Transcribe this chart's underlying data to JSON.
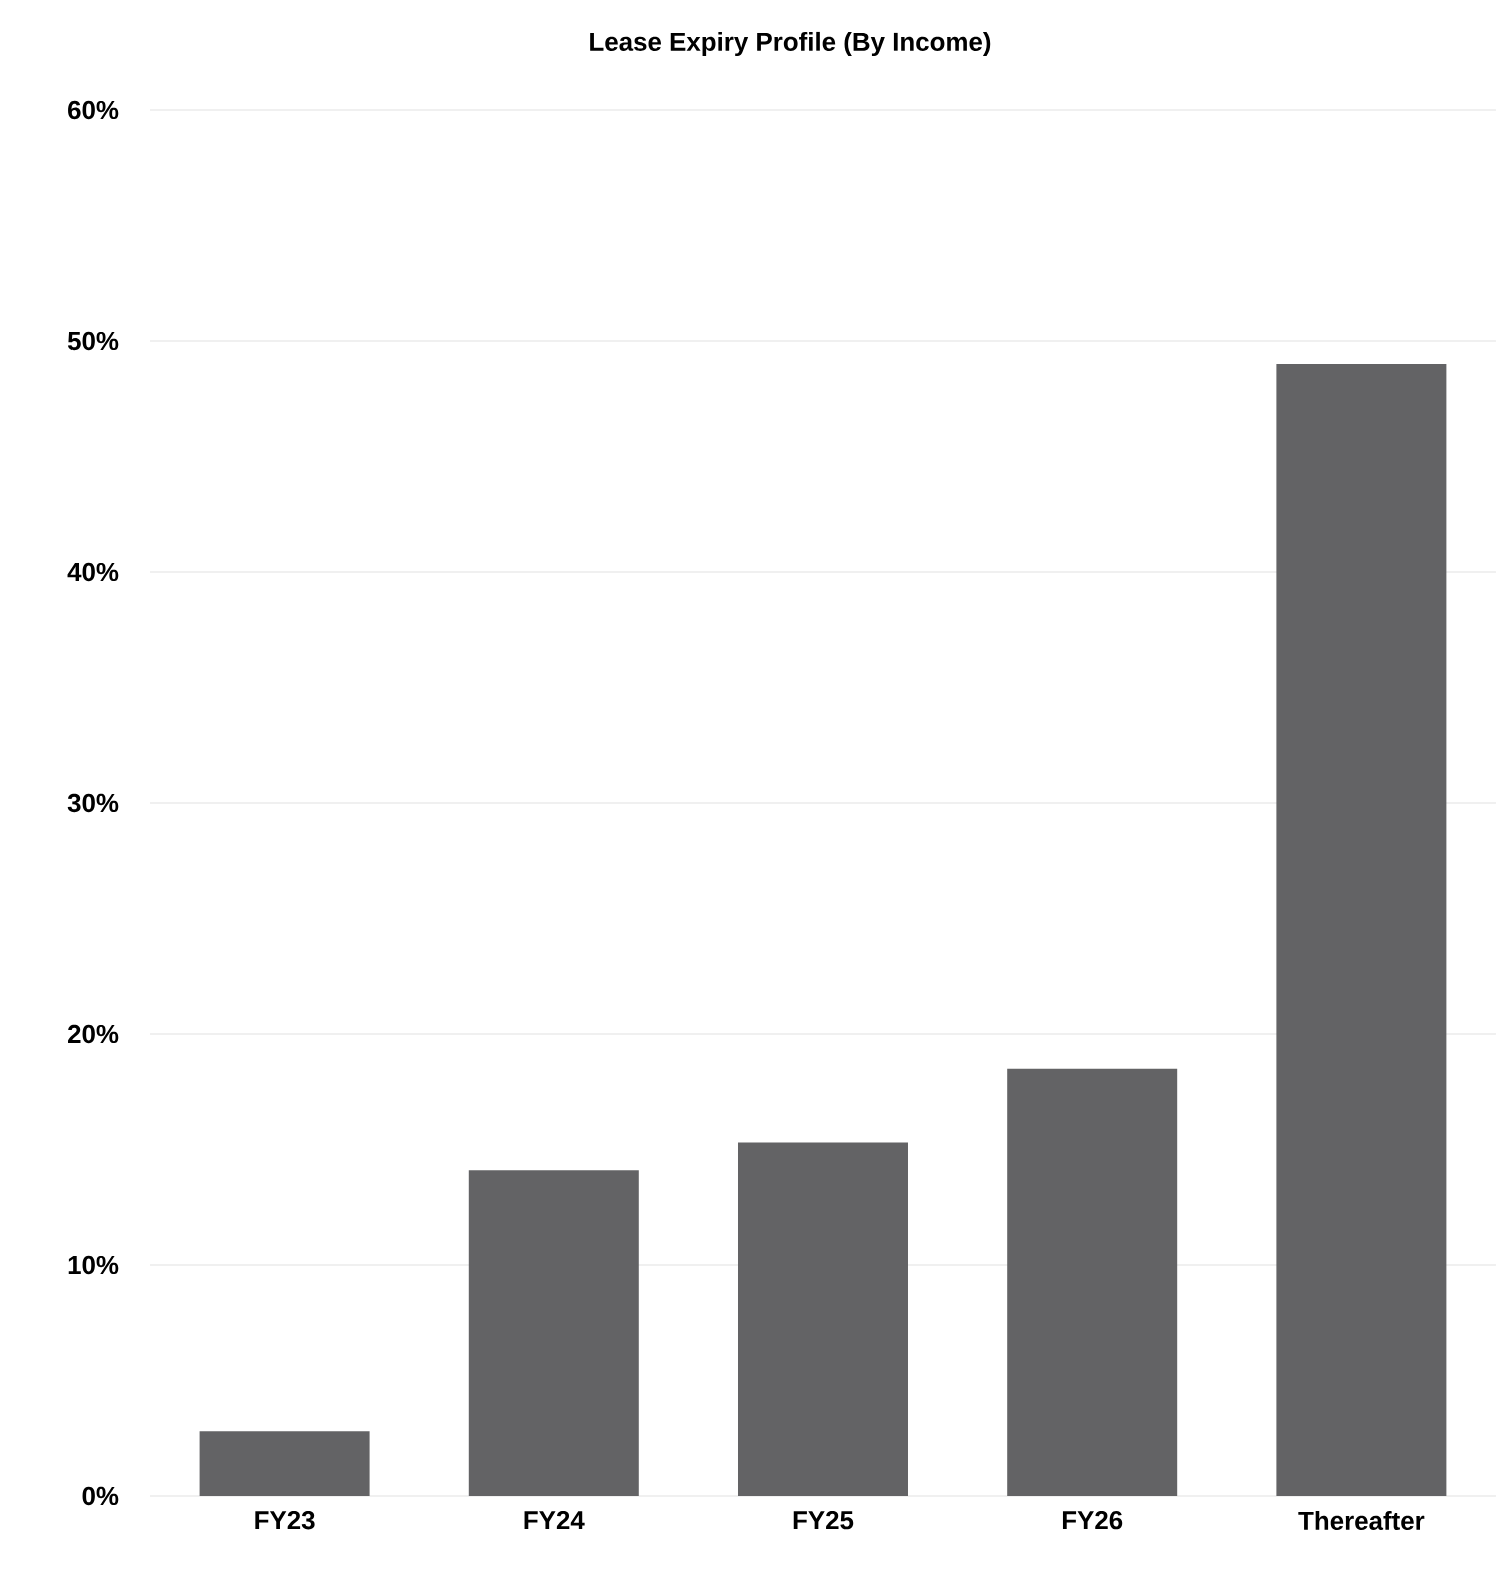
{
  "chart_data": {
    "type": "bar",
    "title": "Lease Expiry Profile (By Income)",
    "categories": [
      "FY23",
      "FY24",
      "FY25",
      "FY26",
      "Thereafter"
    ],
    "values": [
      2.8,
      14.1,
      15.3,
      18.5,
      49.0
    ],
    "color": "#636365",
    "ylim": [
      0,
      60
    ],
    "yticks": [
      {
        "value": 0,
        "label": "0%"
      },
      {
        "value": 10,
        "label": "10%"
      },
      {
        "value": 20,
        "label": "20%"
      },
      {
        "value": 30,
        "label": "30%"
      },
      {
        "value": 40,
        "label": "40%"
      },
      {
        "value": 50,
        "label": "50%"
      },
      {
        "value": 60,
        "label": "60%"
      }
    ],
    "grid": "y"
  }
}
